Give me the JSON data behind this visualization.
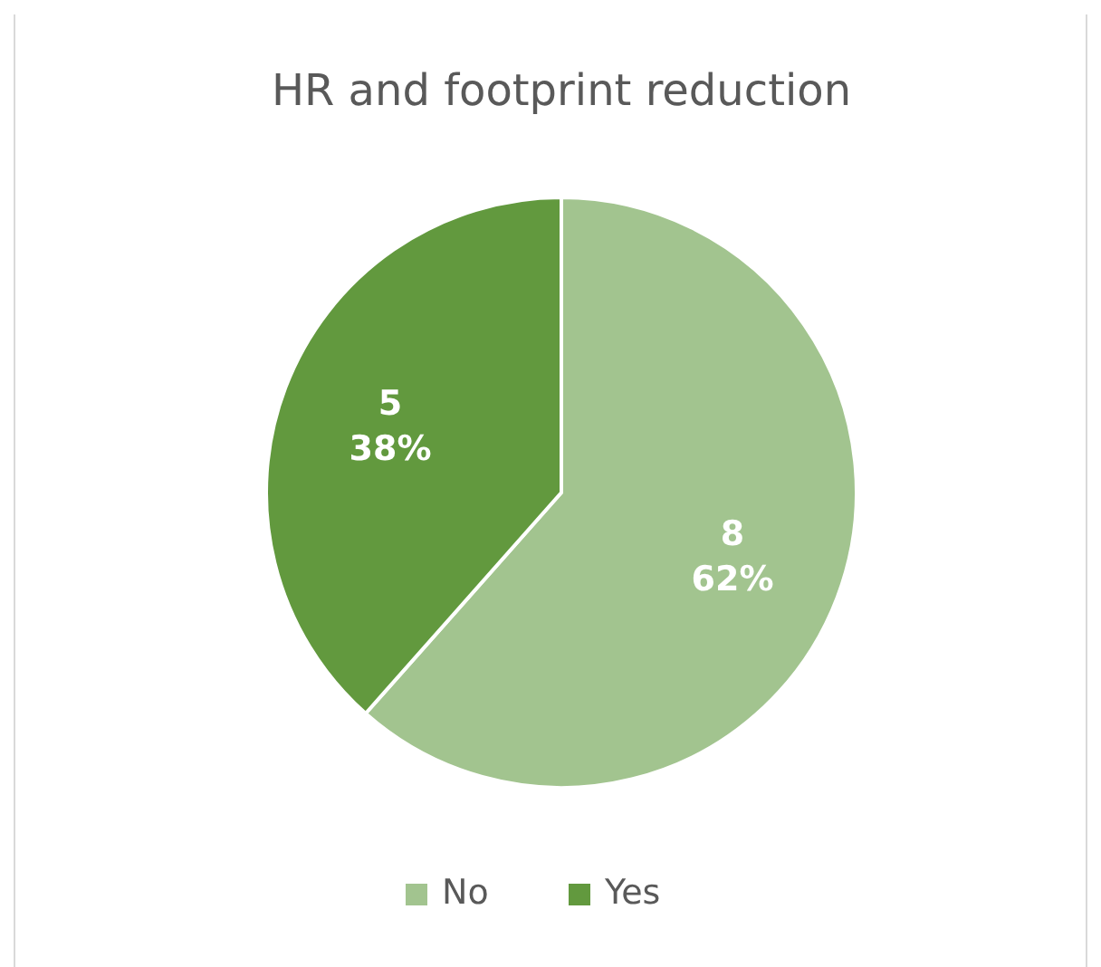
{
  "chart_data": {
    "type": "pie",
    "title": "HR and footprint reduction",
    "categories": [
      "No",
      "Yes"
    ],
    "values": [
      8,
      5
    ],
    "colors": [
      "#a2c48f",
      "#62993e"
    ],
    "value_labels": [
      "8\n62%",
      "5\n38%"
    ],
    "legend": "bottom"
  }
}
